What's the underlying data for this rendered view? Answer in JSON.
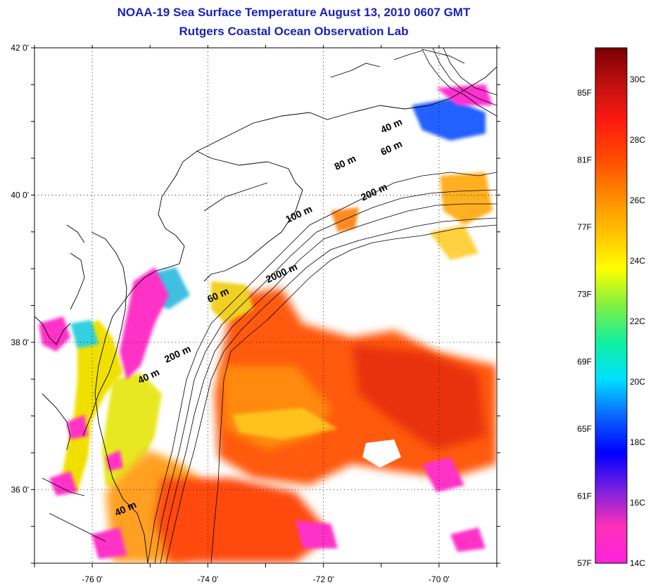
{
  "title_line1": "NOAA-19 Sea Surface Temperature August 13, 2010 0607 GMT",
  "title_line2": "Rutgers Coastal Ocean Observation Lab",
  "lat_labels": [
    {
      "text": "42 0'",
      "lat": 42
    },
    {
      "text": "40 0'",
      "lat": 40
    },
    {
      "text": "38 0'",
      "lat": 38
    },
    {
      "text": "36 0'",
      "lat": 36
    }
  ],
  "lon_labels": [
    {
      "text": "-76 0'",
      "lon": -76
    },
    {
      "text": "-74 0'",
      "lon": -74
    },
    {
      "text": "-72 0'",
      "lon": -72
    },
    {
      "text": "-70 0'",
      "lon": -70
    }
  ],
  "depth_labels": [
    {
      "text": "40 m",
      "lon": -70.8,
      "lat": 40.9
    },
    {
      "text": "60 m",
      "lon": -70.8,
      "lat": 40.6
    },
    {
      "text": "80 m",
      "lon": -71.6,
      "lat": 40.4
    },
    {
      "text": "200 m",
      "lon": -71.1,
      "lat": 40.0
    },
    {
      "text": "100 m",
      "lon": -72.4,
      "lat": 39.7
    },
    {
      "text": "2000 m",
      "lon": -72.7,
      "lat": 38.9
    },
    {
      "text": "60 m",
      "lon": -73.8,
      "lat": 38.6
    },
    {
      "text": "200 m",
      "lon": -74.5,
      "lat": 37.8
    },
    {
      "text": "40 m",
      "lon": -75.0,
      "lat": 37.5
    },
    {
      "text": "40 m",
      "lon": -75.4,
      "lat": 35.7
    }
  ],
  "colorbar": {
    "fahrenheit": [
      "85F",
      "81F",
      "77F",
      "73F",
      "69F",
      "65F",
      "61F",
      "57F"
    ],
    "celsius": [
      "30C",
      "28C",
      "26C",
      "24C",
      "22C",
      "20C",
      "18C",
      "16C",
      "14C"
    ],
    "colors": [
      "#ff22dd",
      "#ff30b8",
      "#7a1fe0",
      "#0000ff",
      "#0a66ff",
      "#00e0ff",
      "#10f0a0",
      "#80f040",
      "#ffff00",
      "#ffc000",
      "#ff8800",
      "#ff4a00",
      "#ff1a10",
      "#c01010",
      "#7a0000"
    ]
  },
  "map_extent": {
    "lon_min": -77,
    "lon_max": -69,
    "lat_min": 35,
    "lat_max": 42
  },
  "colors": {
    "title": "#1a22b8",
    "coast": "#000000",
    "grid": "#000000"
  }
}
